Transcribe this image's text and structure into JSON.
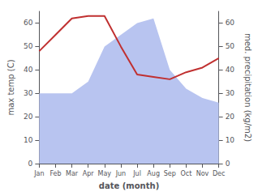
{
  "chart_data": {
    "type": "line",
    "xlabel": "date (month)",
    "ylabel": "max temp (C)",
    "y2label": "med. precipitation (kg/m2)",
    "categories": [
      "Jan",
      "Feb",
      "Mar",
      "Apr",
      "May",
      "Jun",
      "Jul",
      "Aug",
      "Sep",
      "Oct",
      "Nov",
      "Dec"
    ],
    "series": [
      {
        "type": "area",
        "axis": "y2",
        "color": "#b8c4f0",
        "values": [
          30,
          30,
          30,
          35,
          50,
          55,
          60,
          62,
          40,
          32,
          28,
          26
        ]
      },
      {
        "type": "line",
        "color": "#c03030",
        "values": [
          48,
          55,
          62,
          63,
          63,
          50,
          38,
          37,
          36,
          39,
          41,
          45
        ]
      }
    ],
    "ylim": [
      0,
      65
    ],
    "yticks": [
      0,
      10,
      20,
      30,
      40,
      50,
      60
    ],
    "y2lim": [
      0,
      65
    ],
    "y2ticks": [
      0,
      10,
      20,
      30,
      40,
      50,
      60
    ],
    "grid": false
  }
}
